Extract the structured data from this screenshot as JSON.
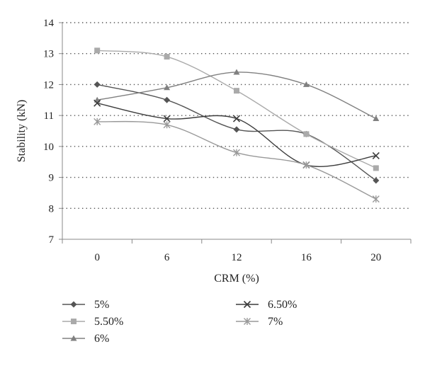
{
  "chart_data": {
    "type": "line",
    "title": "",
    "xlabel": "CRM (%)",
    "ylabel": "Stability (kN)",
    "categories": [
      "0",
      "6",
      "12",
      "16",
      "20"
    ],
    "ylim": [
      7,
      14
    ],
    "yticks": [
      "7",
      "8",
      "9",
      "10",
      "11",
      "12",
      "13",
      "14"
    ],
    "grid": "horizontal-dotted",
    "legend_position": "bottom",
    "series": [
      {
        "name": "5%",
        "values": [
          12.0,
          11.5,
          10.55,
          10.4,
          8.9
        ],
        "color": "#555555",
        "marker": "diamond"
      },
      {
        "name": "5.50%",
        "values": [
          13.1,
          12.9,
          11.8,
          10.4,
          9.3
        ],
        "color": "#aaaaaa",
        "marker": "square"
      },
      {
        "name": "6%",
        "values": [
          11.5,
          11.9,
          12.4,
          12.0,
          10.9
        ],
        "color": "#808080",
        "marker": "triangle"
      },
      {
        "name": "6.50%",
        "values": [
          11.4,
          10.9,
          10.9,
          9.4,
          9.7
        ],
        "color": "#3c3c3c",
        "marker": "x"
      },
      {
        "name": "7%",
        "values": [
          10.8,
          10.7,
          9.8,
          9.4,
          8.3
        ],
        "color": "#999999",
        "marker": "star"
      }
    ]
  }
}
